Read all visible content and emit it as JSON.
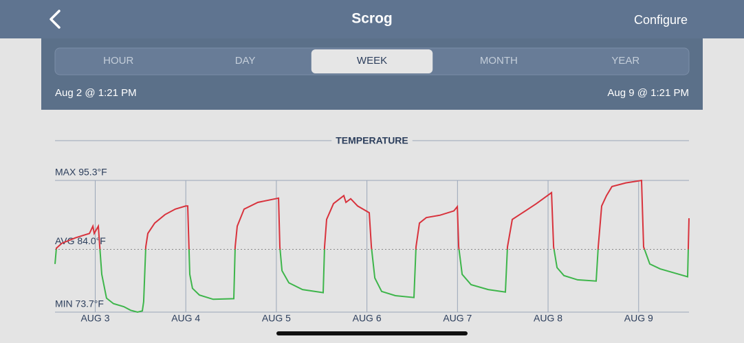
{
  "header": {
    "title": "Scrog",
    "action": "Configure"
  },
  "tabs": [
    "HOUR",
    "DAY",
    "WEEK",
    "MONTH",
    "YEAR"
  ],
  "selected_tab": 2,
  "range": {
    "start": "Aug 2 @ 1:21 PM",
    "end": "Aug 9 @ 1:21 PM"
  },
  "chart_data": {
    "type": "line",
    "title": "TEMPERATURE",
    "color": "#d8323c",
    "color_below": "#3db54a",
    "x": [
      0,
      0.015,
      0.076,
      0.228,
      0.38,
      0.418,
      0.433,
      0.478,
      0.494,
      0.516,
      0.569,
      0.645,
      0.759,
      0.835,
      0.911,
      0.964,
      0.979,
      1.002,
      1.025,
      1.101,
      1.215,
      1.329,
      1.443,
      1.465,
      1.488,
      1.518,
      1.594,
      1.746,
      1.974,
      1.989,
      2.012,
      2.088,
      2.24,
      2.468,
      2.483,
      2.506,
      2.582,
      2.733,
      2.961,
      2.976,
      2.999,
      3.075,
      3.189,
      3.212,
      3.265,
      3.341,
      3.47,
      3.493,
      3.531,
      3.606,
      3.758,
      3.963,
      3.986,
      4.024,
      4.1,
      4.252,
      4.404,
      4.442,
      4.457,
      4.495,
      4.594,
      4.783,
      4.973,
      4.996,
      5.049,
      5.163,
      5.315,
      5.482,
      5.505,
      5.543,
      5.619,
      5.77,
      5.975,
      5.998,
      6.036,
      6.089,
      6.15,
      6.302,
      6.476,
      6.499,
      6.567,
      6.681,
      6.985,
      7.0
    ],
    "values": [
      81.6,
      84.2,
      85.0,
      85.9,
      86.6,
      87.8,
      86.6,
      87.8,
      84.4,
      79.9,
      76.0,
      75.1,
      74.6,
      74.0,
      73.7,
      73.9,
      75.4,
      84.4,
      86.6,
      88.3,
      89.7,
      90.6,
      91.1,
      91.1,
      79.9,
      77.6,
      76.5,
      75.8,
      75.9,
      84.4,
      87.8,
      90.6,
      91.7,
      92.4,
      84.4,
      80.5,
      78.5,
      77.4,
      76.9,
      84.4,
      88.9,
      91.5,
      92.8,
      91.7,
      92.3,
      91.1,
      90.0,
      84.4,
      79.3,
      77.1,
      76.4,
      76.1,
      84.4,
      88.3,
      89.2,
      89.6,
      90.3,
      91.0,
      84.4,
      79.9,
      78.2,
      77.4,
      77.0,
      84.4,
      88.9,
      90.0,
      91.5,
      93.3,
      84.4,
      81.0,
      79.7,
      79.0,
      78.8,
      84.4,
      91.1,
      92.8,
      94.3,
      94.9,
      95.3,
      84.4,
      81.6,
      80.8,
      79.5,
      89.1
    ],
    "xlim": [
      0,
      7
    ],
    "xticks": [
      {
        "value": 0.444,
        "label": "AUG 3"
      },
      {
        "value": 1.444,
        "label": "AUG 4"
      },
      {
        "value": 2.444,
        "label": "AUG 5"
      },
      {
        "value": 3.444,
        "label": "AUG 6"
      },
      {
        "value": 4.444,
        "label": "AUG 7"
      },
      {
        "value": 5.444,
        "label": "AUG 8"
      },
      {
        "value": 6.444,
        "label": "AUG 9"
      }
    ],
    "ylim": [
      73.7,
      95.3
    ],
    "yticks": [
      {
        "value": 73.7,
        "label": "MIN 73.7°F"
      },
      {
        "value": 84.0,
        "label": "AVG 84.0°F"
      },
      {
        "value": 95.3,
        "label": "MAX 95.3°F"
      }
    ],
    "grid": true
  }
}
